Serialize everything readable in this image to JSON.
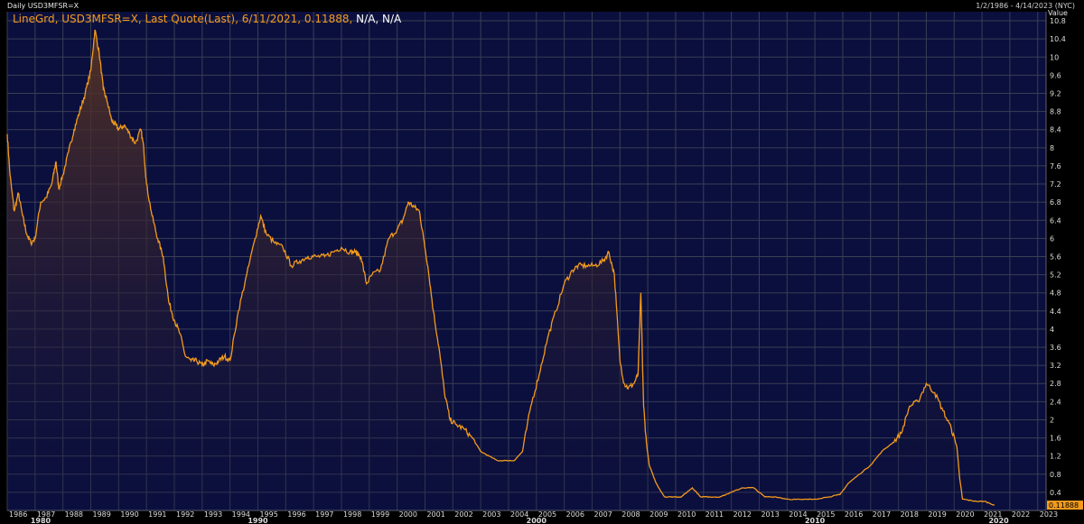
{
  "header": {
    "left_title": "Daily USD3MFSR=X",
    "date_range": "1/2/1986 - 4/14/2023 (NYC)"
  },
  "legend": {
    "text": "LineGrd, USD3MFSR=X, Last Quote(Last), 6/11/2021, 0.11888,",
    "na": "N/A, N/A"
  },
  "last_value_label": "0.11888",
  "colors": {
    "background": "#0b0f3d",
    "line": "#f39a1d",
    "grid": "#3a3f55",
    "fill_top": "#5a3524"
  },
  "chart_data": {
    "type": "area",
    "ylabel": "Value",
    "ylim": [
      0,
      11.0
    ],
    "yticks": [
      0.4,
      0.8,
      1.2,
      1.6,
      2,
      2.4,
      2.8,
      3.2,
      3.6,
      4,
      4.4,
      4.8,
      5.2,
      5.6,
      6,
      6.4,
      6.8,
      7.2,
      7.6,
      8,
      8.4,
      8.8,
      9.2,
      9.6,
      10,
      10.4,
      10.8
    ],
    "xlim": [
      1986.0,
      2023.3
    ],
    "xticks": [
      "1986",
      "1987",
      "1988",
      "1989",
      "1990",
      "1991",
      "1992",
      "1993",
      "1994",
      "1995",
      "1996",
      "1997",
      "1998",
      "1999",
      "2000",
      "2001",
      "2002",
      "2003",
      "2004",
      "2005",
      "2006",
      "2007",
      "2008",
      "2009",
      "2010",
      "2011",
      "2012",
      "2013",
      "2014",
      "2015",
      "2016",
      "2017",
      "2018",
      "2019",
      "2020",
      "2021",
      "2022",
      "2023"
    ],
    "decade_labels": [
      {
        "label": "1980",
        "x": 1987.2
      },
      {
        "label": "1990",
        "x": 1995.0
      },
      {
        "label": "2000",
        "x": 2005.0
      },
      {
        "label": "2010",
        "x": 2015.0
      },
      {
        "label": "2020",
        "x": 2021.6
      }
    ],
    "series": [
      {
        "name": "USD3MFSR=X",
        "x": [
          1986.0,
          1986.1,
          1986.25,
          1986.4,
          1986.55,
          1986.7,
          1986.85,
          1987.0,
          1987.2,
          1987.4,
          1987.6,
          1987.75,
          1987.85,
          1988.0,
          1988.2,
          1988.4,
          1988.6,
          1988.8,
          1989.0,
          1989.15,
          1989.3,
          1989.45,
          1989.6,
          1989.75,
          1989.9,
          1990.0,
          1990.2,
          1990.4,
          1990.6,
          1990.8,
          1990.9,
          1991.0,
          1991.2,
          1991.4,
          1991.6,
          1991.8,
          1992.0,
          1992.2,
          1992.4,
          1992.6,
          1992.8,
          1993.0,
          1993.2,
          1993.4,
          1993.6,
          1993.8,
          1994.0,
          1994.3,
          1994.6,
          1994.9,
          1995.1,
          1995.3,
          1995.6,
          1995.9,
          1996.2,
          1996.5,
          1996.8,
          1997.1,
          1997.4,
          1997.7,
          1998.0,
          1998.3,
          1998.5,
          1998.7,
          1998.9,
          1999.1,
          1999.4,
          1999.7,
          2000.0,
          2000.2,
          2000.4,
          2000.6,
          2000.8,
          2000.95,
          2001.1,
          2001.3,
          2001.5,
          2001.7,
          2001.9,
          2002.1,
          2002.4,
          2002.7,
          2003.0,
          2003.3,
          2003.6,
          2003.9,
          2004.2,
          2004.5,
          2004.8,
          2005.1,
          2005.4,
          2005.7,
          2006.0,
          2006.3,
          2006.5,
          2006.8,
          2007.1,
          2007.4,
          2007.6,
          2007.8,
          2008.0,
          2008.15,
          2008.3,
          2008.5,
          2008.65,
          2008.75,
          2008.85,
          2008.95,
          2009.05,
          2009.3,
          2009.6,
          2009.9,
          2010.2,
          2010.4,
          2010.6,
          2010.9,
          2011.2,
          2011.6,
          2012.0,
          2012.4,
          2012.8,
          2013.2,
          2013.6,
          2014.0,
          2014.5,
          2015.0,
          2015.5,
          2015.9,
          2016.2,
          2016.6,
          2017.0,
          2017.4,
          2017.8,
          2018.1,
          2018.4,
          2018.7,
          2019.0,
          2019.3,
          2019.6,
          2019.9,
          2020.1,
          2020.2,
          2020.3,
          2020.5,
          2020.8,
          2021.1,
          2021.45
        ],
        "values": [
          8.3,
          7.4,
          6.6,
          7.0,
          6.5,
          6.1,
          5.9,
          6.0,
          6.8,
          6.9,
          7.2,
          7.7,
          7.1,
          7.4,
          7.9,
          8.4,
          8.8,
          9.2,
          9.7,
          10.6,
          10.1,
          9.3,
          9.0,
          8.6,
          8.5,
          8.4,
          8.5,
          8.3,
          8.1,
          8.4,
          8.0,
          7.2,
          6.5,
          6.0,
          5.6,
          4.6,
          4.2,
          3.9,
          3.4,
          3.3,
          3.3,
          3.2,
          3.3,
          3.2,
          3.3,
          3.4,
          3.3,
          4.4,
          5.2,
          6.0,
          6.5,
          6.1,
          5.9,
          5.8,
          5.4,
          5.5,
          5.6,
          5.6,
          5.6,
          5.7,
          5.8,
          5.7,
          5.7,
          5.6,
          5.0,
          5.2,
          5.3,
          6.0,
          6.2,
          6.4,
          6.8,
          6.7,
          6.6,
          6.0,
          5.4,
          4.4,
          3.6,
          2.6,
          2.0,
          1.9,
          1.8,
          1.6,
          1.3,
          1.2,
          1.1,
          1.1,
          1.1,
          1.3,
          2.3,
          3.0,
          3.8,
          4.4,
          5.0,
          5.3,
          5.4,
          5.4,
          5.4,
          5.5,
          5.7,
          5.2,
          3.3,
          2.8,
          2.7,
          2.8,
          3.0,
          4.8,
          2.3,
          1.5,
          1.0,
          0.6,
          0.3,
          0.3,
          0.3,
          0.4,
          0.5,
          0.3,
          0.3,
          0.3,
          0.4,
          0.5,
          0.5,
          0.3,
          0.3,
          0.25,
          0.24,
          0.25,
          0.3,
          0.35,
          0.6,
          0.8,
          1.0,
          1.3,
          1.5,
          1.7,
          2.3,
          2.4,
          2.8,
          2.6,
          2.2,
          1.8,
          1.4,
          0.7,
          0.25,
          0.23,
          0.2,
          0.2,
          0.11888
        ]
      }
    ]
  }
}
